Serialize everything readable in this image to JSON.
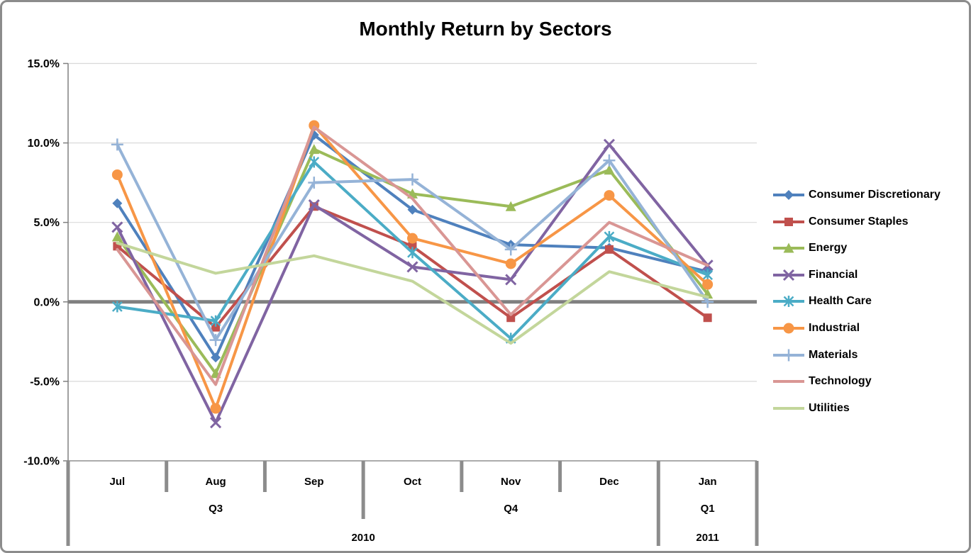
{
  "title": "Monthly Return by Sectors",
  "colors": {
    "grid": "#D9D9D9",
    "zero_line": "#808080",
    "axis": "#808080",
    "boundary_tick": "#8C8C8C",
    "text": "#000000",
    "frame": "#8C8C8C"
  },
  "chart_data": {
    "type": "line",
    "x": [
      "Jul",
      "Aug",
      "Sep",
      "Oct",
      "Nov",
      "Dec",
      "Jan"
    ],
    "x_groups": {
      "quarters": [
        {
          "label": "Q3",
          "from": 0,
          "to": 3
        },
        {
          "label": "Q4",
          "from": 3,
          "to": 6
        },
        {
          "label": "Q1",
          "from": 6,
          "to": 7
        }
      ],
      "years": [
        {
          "label": "2010",
          "from": 0,
          "to": 6
        },
        {
          "label": "2011",
          "from": 6,
          "to": 7
        }
      ]
    },
    "title": "Monthly Return by Sectors",
    "xlabel": "",
    "ylabel": "",
    "ylim": [
      -10,
      15
    ],
    "yticks": [
      {
        "value": 15,
        "label": "15.0%"
      },
      {
        "value": 10,
        "label": "10.0%"
      },
      {
        "value": 5,
        "label": "5.0%"
      },
      {
        "value": 0,
        "label": "0.0%"
      },
      {
        "value": -5,
        "label": "-5.0%"
      },
      {
        "value": -10,
        "label": "-10.0%"
      }
    ],
    "grid": true,
    "legend_position": "right",
    "series": [
      {
        "name": "Consumer Discretionary",
        "color": "#4F81BD",
        "marker": "diamond",
        "values": [
          6.2,
          -3.5,
          10.5,
          5.8,
          3.6,
          3.4,
          1.9
        ]
      },
      {
        "name": "Consumer Staples",
        "color": "#C0504D",
        "marker": "square",
        "values": [
          3.5,
          -1.6,
          6.0,
          3.5,
          -1.0,
          3.3,
          -1.0
        ]
      },
      {
        "name": "Energy",
        "color": "#9BBB59",
        "marker": "triangle",
        "values": [
          4.1,
          -4.5,
          9.6,
          6.8,
          6.0,
          8.3,
          0.5
        ]
      },
      {
        "name": "Financial",
        "color": "#8064A2",
        "marker": "x",
        "values": [
          4.7,
          -7.6,
          6.1,
          2.2,
          1.4,
          9.9,
          2.3
        ]
      },
      {
        "name": "Health Care",
        "color": "#4BACC6",
        "marker": "asterisk",
        "values": [
          -0.3,
          -1.2,
          8.8,
          3.1,
          -2.3,
          4.1,
          1.7
        ]
      },
      {
        "name": "Industrial",
        "color": "#F79646",
        "marker": "circle",
        "values": [
          8.0,
          -6.7,
          11.1,
          4.0,
          2.4,
          6.7,
          1.1
        ]
      },
      {
        "name": "Materials",
        "color": "#95B3D7",
        "marker": "plus",
        "values": [
          9.9,
          -2.4,
          7.5,
          7.7,
          3.3,
          8.9,
          0.0
        ]
      },
      {
        "name": "Technology",
        "color": "#D99694",
        "marker": "none",
        "values": [
          3.3,
          -5.2,
          11.0,
          6.5,
          -0.8,
          5.0,
          2.3
        ]
      },
      {
        "name": "Utilities",
        "color": "#C3D69B",
        "marker": "none",
        "values": [
          3.7,
          1.8,
          2.9,
          1.3,
          -2.6,
          1.9,
          0.3
        ]
      }
    ]
  }
}
